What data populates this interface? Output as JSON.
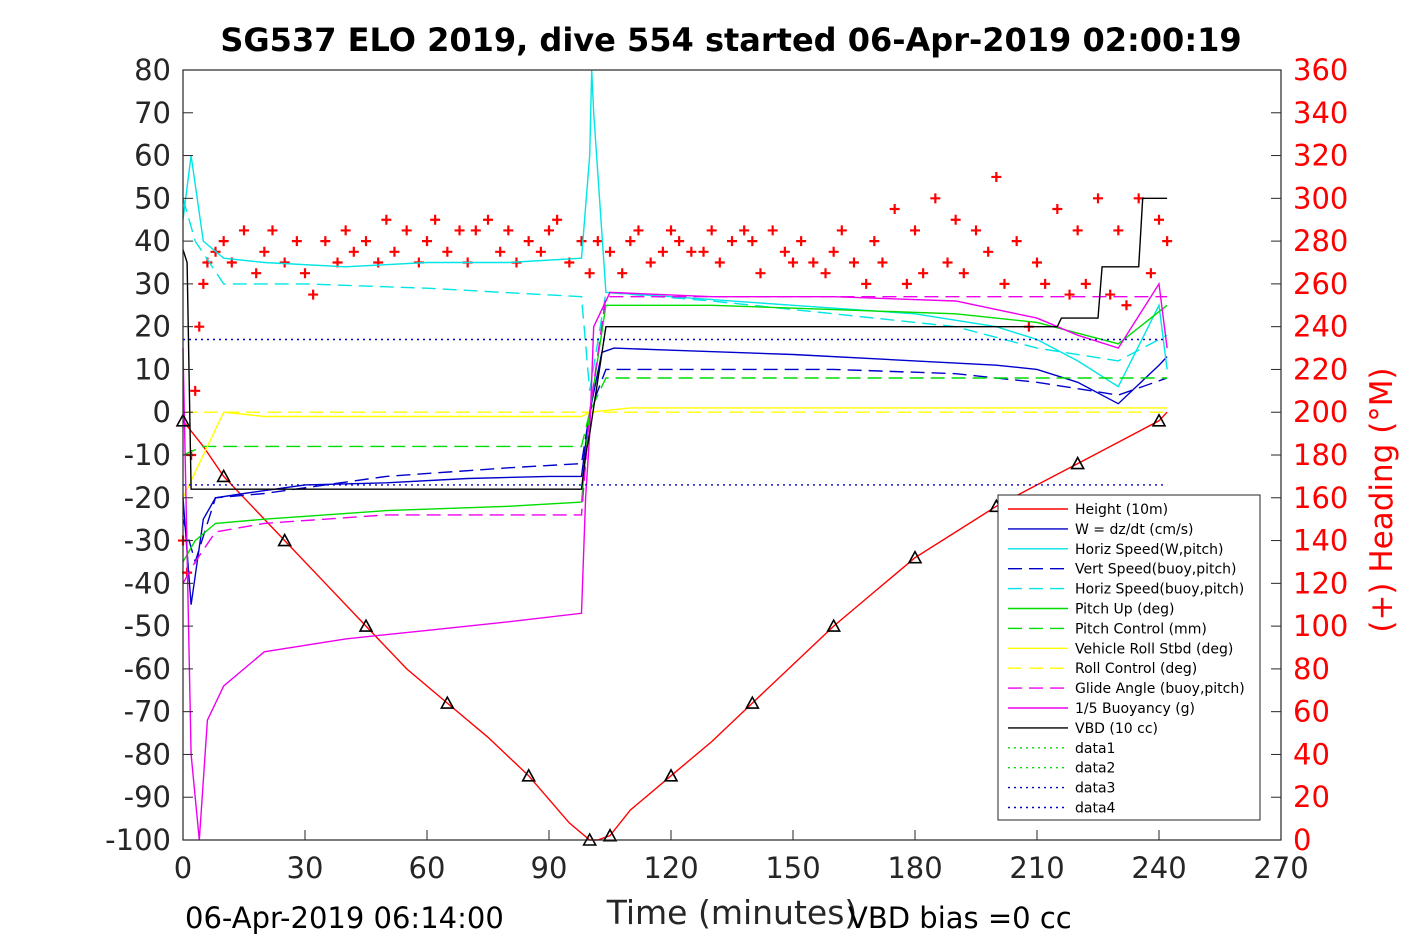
{
  "chart_data": {
    "type": "line",
    "title": "SG537 ELO 2019, dive 554 started 06-Apr-2019 02:00:19",
    "xlabel": "Time (minutes)",
    "ylabel": "",
    "y2label": "(+) Heading (°M)",
    "xlim": [
      0,
      270
    ],
    "ylim": [
      -100,
      80
    ],
    "y2lim": [
      0,
      360
    ],
    "x_ticks": [
      "0",
      "30",
      "60",
      "90",
      "120",
      "150",
      "180",
      "210",
      "240",
      "270"
    ],
    "y_ticks": [
      "80",
      "70",
      "60",
      "50",
      "40",
      "30",
      "20",
      "10",
      "0",
      "-10",
      "-20",
      "-30",
      "-40",
      "-50",
      "-60",
      "-70",
      "-80",
      "-90",
      "-100"
    ],
    "y2_ticks": [
      "360",
      "340",
      "320",
      "300",
      "280",
      "260",
      "240",
      "220",
      "200",
      "180",
      "160",
      "140",
      "120",
      "100",
      "80",
      "60",
      "40",
      "20",
      "0"
    ],
    "footer_left": "06-Apr-2019 06:14:00",
    "footer_right": "VBD bias =0 cc",
    "legend_position": "lower-right",
    "grid": false,
    "series": [
      {
        "name": "Height (10m)",
        "color": "#ff0000",
        "style": "solid",
        "x": [
          0,
          5,
          10,
          15,
          25,
          35,
          45,
          55,
          65,
          75,
          85,
          95,
          100,
          102,
          105,
          110,
          120,
          130,
          140,
          150,
          160,
          170,
          180,
          190,
          200,
          210,
          220,
          230,
          240,
          242
        ],
        "y": [
          -2,
          -8,
          -15,
          -20,
          -30,
          -40,
          -50,
          -60,
          -68,
          -76,
          -85,
          -96,
          -100,
          -100,
          -99,
          -93,
          -85,
          -77,
          -68,
          -59,
          -50,
          -42,
          -34,
          -28,
          -22,
          -17,
          -12,
          -7,
          -2,
          0
        ]
      },
      {
        "name": "W = dz/dt (cm/s)",
        "color": "#0000cc",
        "style": "solid",
        "x": [
          0,
          2,
          5,
          8,
          15,
          30,
          50,
          70,
          90,
          98,
          100,
          103,
          106,
          120,
          150,
          180,
          200,
          210,
          220,
          230,
          240,
          242
        ],
        "y": [
          -20,
          -45,
          -25,
          -20,
          -19,
          -17,
          -16.5,
          -15.5,
          -15,
          -15,
          0,
          14,
          15,
          14.5,
          13.5,
          12,
          11,
          10,
          7,
          2,
          11,
          13
        ]
      },
      {
        "name": "Horiz Speed(W,pitch)",
        "color": "#00e5e5",
        "style": "solid",
        "x": [
          0,
          2,
          5,
          10,
          20,
          40,
          60,
          80,
          98,
          100,
          100.5,
          101,
          104,
          120,
          150,
          180,
          200,
          210,
          220,
          230,
          240,
          242
        ],
        "y": [
          45,
          60,
          40,
          36,
          35,
          34,
          35,
          35,
          36,
          60,
          80,
          70,
          28,
          27,
          25,
          23,
          20,
          17,
          12,
          6,
          25,
          10
        ]
      },
      {
        "name": "Vert Speed(buoy,pitch)",
        "color": "#0000cc",
        "style": "dashed",
        "x": [
          0,
          3,
          8,
          20,
          50,
          80,
          98,
          100,
          104,
          130,
          160,
          190,
          210,
          230,
          242
        ],
        "y": [
          -25,
          -35,
          -20,
          -19,
          -15,
          -13,
          -12,
          0,
          10,
          10,
          10,
          9,
          7,
          4,
          8
        ]
      },
      {
        "name": "Horiz Speed(buoy,pitch)",
        "color": "#00e5e5",
        "style": "dashed",
        "x": [
          0,
          3,
          10,
          30,
          60,
          98,
          100,
          104,
          130,
          160,
          190,
          210,
          230,
          242
        ],
        "y": [
          50,
          40,
          30,
          30,
          29,
          27,
          5,
          28,
          26,
          23,
          20,
          15,
          12,
          18
        ]
      },
      {
        "name": "Pitch Up (deg)",
        "color": "#00dd00",
        "style": "solid",
        "x": [
          0,
          3,
          8,
          20,
          50,
          80,
          98,
          100,
          104,
          130,
          160,
          190,
          210,
          230,
          242
        ],
        "y": [
          -35,
          -30,
          -26,
          -25,
          -23,
          -22,
          -21,
          0,
          25,
          25,
          24,
          23,
          21,
          16,
          25
        ]
      },
      {
        "name": "Pitch Control (mm)",
        "color": "#00dd00",
        "style": "dashed",
        "x": [
          0,
          5,
          50,
          98,
          100,
          104,
          150,
          200,
          242
        ],
        "y": [
          -10,
          -8,
          -8,
          -8,
          0,
          8,
          8,
          8,
          8
        ]
      },
      {
        "name": "Vehicle Roll Stbd (deg)",
        "color": "#ffff00",
        "style": "solid",
        "x": [
          0,
          5,
          10,
          20,
          40,
          60,
          80,
          98,
          100,
          110,
          140,
          170,
          200,
          220,
          242
        ],
        "y": [
          -20,
          -10,
          0,
          -1,
          -1,
          -1,
          -1,
          -1,
          0,
          1,
          1,
          1,
          1,
          1,
          1
        ]
      },
      {
        "name": "Roll Control (deg)",
        "color": "#ffff00",
        "style": "dashed",
        "x": [
          0,
          50,
          100,
          150,
          200,
          242
        ],
        "y": [
          0,
          0,
          0,
          0,
          0,
          0
        ]
      },
      {
        "name": "Glide Angle (buoy,pitch)",
        "color": "#ee00ee",
        "style": "dashed",
        "x": [
          0,
          3,
          8,
          20,
          50,
          80,
          98,
          100,
          104,
          130,
          160,
          190,
          210,
          230,
          242
        ],
        "y": [
          -40,
          -35,
          -28,
          -26,
          -24,
          -24,
          -24,
          0,
          27,
          27,
          27,
          27,
          27,
          27,
          27
        ]
      },
      {
        "name": "1/5 Buoyancy (g)",
        "color": "#ee00ee",
        "style": "solid",
        "x": [
          0,
          2,
          4,
          6,
          10,
          20,
          40,
          60,
          80,
          98,
          99,
          100,
          101,
          105,
          130,
          160,
          190,
          210,
          220,
          230,
          240,
          242
        ],
        "y": [
          15,
          -80,
          -100,
          -72,
          -64,
          -56,
          -53,
          -51,
          -49,
          -47,
          -20,
          -5,
          20,
          28,
          27,
          27,
          26,
          22,
          18,
          15,
          30,
          15
        ]
      },
      {
        "name": "VBD (10 cc)",
        "color": "#000000",
        "style": "solid",
        "x": [
          0,
          1,
          2,
          98,
          99,
          100,
          104,
          215,
          216,
          225,
          226,
          235,
          236,
          242
        ],
        "y": [
          38,
          35,
          -18,
          -18,
          -10,
          -5,
          20,
          20,
          22,
          22,
          34,
          34,
          50,
          50
        ]
      },
      {
        "name": "data1",
        "color": "#00dd00",
        "style": "dotted",
        "x": [],
        "y": []
      },
      {
        "name": "data2",
        "color": "#00dd00",
        "style": "dotted",
        "x": [],
        "y": []
      },
      {
        "name": "data3",
        "color": "#0000cc",
        "style": "dotted",
        "x": [
          0,
          242
        ],
        "y": [
          17,
          17
        ]
      },
      {
        "name": "data4",
        "color": "#0000cc",
        "style": "dotted",
        "x": [
          0,
          242
        ],
        "y": [
          -17,
          -17
        ]
      }
    ],
    "heading": {
      "axis": "right",
      "color": "#ff0000",
      "marker": "+",
      "x": [
        0,
        1,
        2,
        3,
        4,
        5,
        6,
        8,
        10,
        12,
        15,
        18,
        20,
        22,
        25,
        28,
        30,
        32,
        35,
        38,
        40,
        42,
        45,
        48,
        50,
        52,
        55,
        58,
        60,
        62,
        65,
        68,
        70,
        72,
        75,
        78,
        80,
        82,
        85,
        88,
        90,
        92,
        95,
        98,
        100,
        102,
        105,
        108,
        110,
        112,
        115,
        118,
        120,
        122,
        125,
        128,
        130,
        132,
        135,
        138,
        140,
        142,
        145,
        148,
        150,
        152,
        155,
        158,
        160,
        162,
        165,
        168,
        170,
        172,
        175,
        178,
        180,
        182,
        185,
        188,
        190,
        192,
        195,
        198,
        200,
        202,
        205,
        208,
        210,
        212,
        215,
        218,
        220,
        222,
        225,
        228,
        230,
        232,
        235,
        238,
        240,
        242
      ],
      "y": [
        140,
        125,
        180,
        210,
        240,
        260,
        270,
        275,
        280,
        270,
        285,
        265,
        275,
        285,
        270,
        280,
        265,
        255,
        280,
        270,
        285,
        275,
        280,
        270,
        290,
        275,
        285,
        270,
        280,
        290,
        275,
        285,
        270,
        285,
        290,
        275,
        285,
        270,
        280,
        275,
        285,
        290,
        270,
        280,
        265,
        280,
        275,
        265,
        280,
        285,
        270,
        275,
        285,
        280,
        275,
        275,
        285,
        270,
        280,
        285,
        280,
        265,
        285,
        275,
        270,
        280,
        270,
        265,
        275,
        285,
        270,
        260,
        280,
        270,
        295,
        260,
        285,
        265,
        300,
        270,
        290,
        265,
        285,
        275,
        310,
        260,
        280,
        240,
        270,
        260,
        295,
        255,
        285,
        260,
        300,
        255,
        285,
        250,
        300,
        265,
        290,
        280
      ]
    }
  }
}
